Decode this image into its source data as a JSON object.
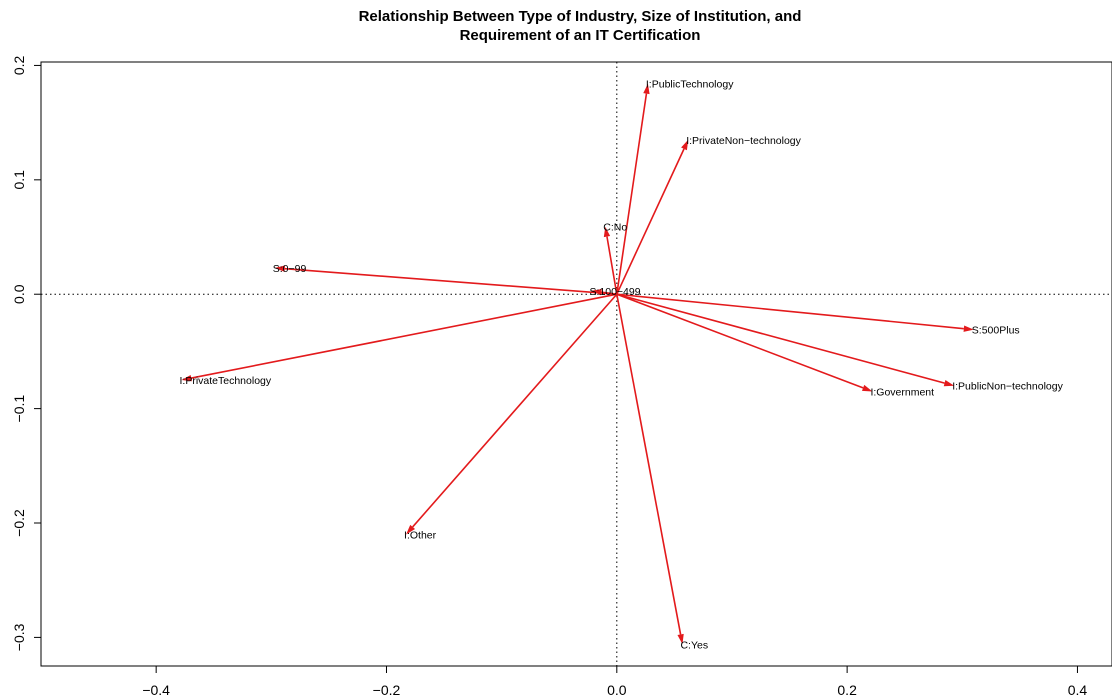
{
  "chart_data": {
    "type": "biplot",
    "title": [
      "Relationship Between Type of Industry, Size of Institution, and",
      "Requirement of an IT Certification"
    ],
    "xlabel": "",
    "ylabel": "",
    "xlim": [
      -0.5,
      0.43
    ],
    "ylim": [
      -0.325,
      0.203
    ],
    "x_ticks": [
      -0.4,
      -0.2,
      0.0,
      0.2,
      0.4
    ],
    "x_tick_labels": [
      "−0.4",
      "−0.2",
      "0.0",
      "0.2",
      "0.4"
    ],
    "y_ticks": [
      -0.3,
      -0.2,
      -0.1,
      0.0,
      0.1,
      0.2
    ],
    "y_tick_labels": [
      "−0.3",
      "−0.2",
      "−0.1",
      "0.0",
      "0.1",
      "0.2"
    ],
    "reference_lines": {
      "x": 0.0,
      "y": 0.0,
      "style": "dotted"
    },
    "arrow_color": "#e31a1c",
    "origin": [
      0,
      0
    ],
    "points": [
      {
        "label": "I:PublicTechnology",
        "x": 0.027,
        "y": 0.184
      },
      {
        "label": "I:PrivateNon−technology",
        "x": 0.062,
        "y": 0.135
      },
      {
        "label": "C:No",
        "x": -0.01,
        "y": 0.059
      },
      {
        "label": "S:0−99",
        "x": -0.297,
        "y": 0.023
      },
      {
        "label": "S:100−499",
        "x": -0.022,
        "y": 0.003
      },
      {
        "label": "S:500Plus",
        "x": 0.31,
        "y": -0.031
      },
      {
        "label": "I:PrivateTechnology",
        "x": -0.378,
        "y": -0.075
      },
      {
        "label": "I:Government",
        "x": 0.222,
        "y": -0.085
      },
      {
        "label": "I:PublicNon−technology",
        "x": 0.293,
        "y": -0.08
      },
      {
        "label": "I:Other",
        "x": -0.183,
        "y": -0.21
      },
      {
        "label": "C:Yes",
        "x": 0.057,
        "y": -0.306
      }
    ]
  }
}
